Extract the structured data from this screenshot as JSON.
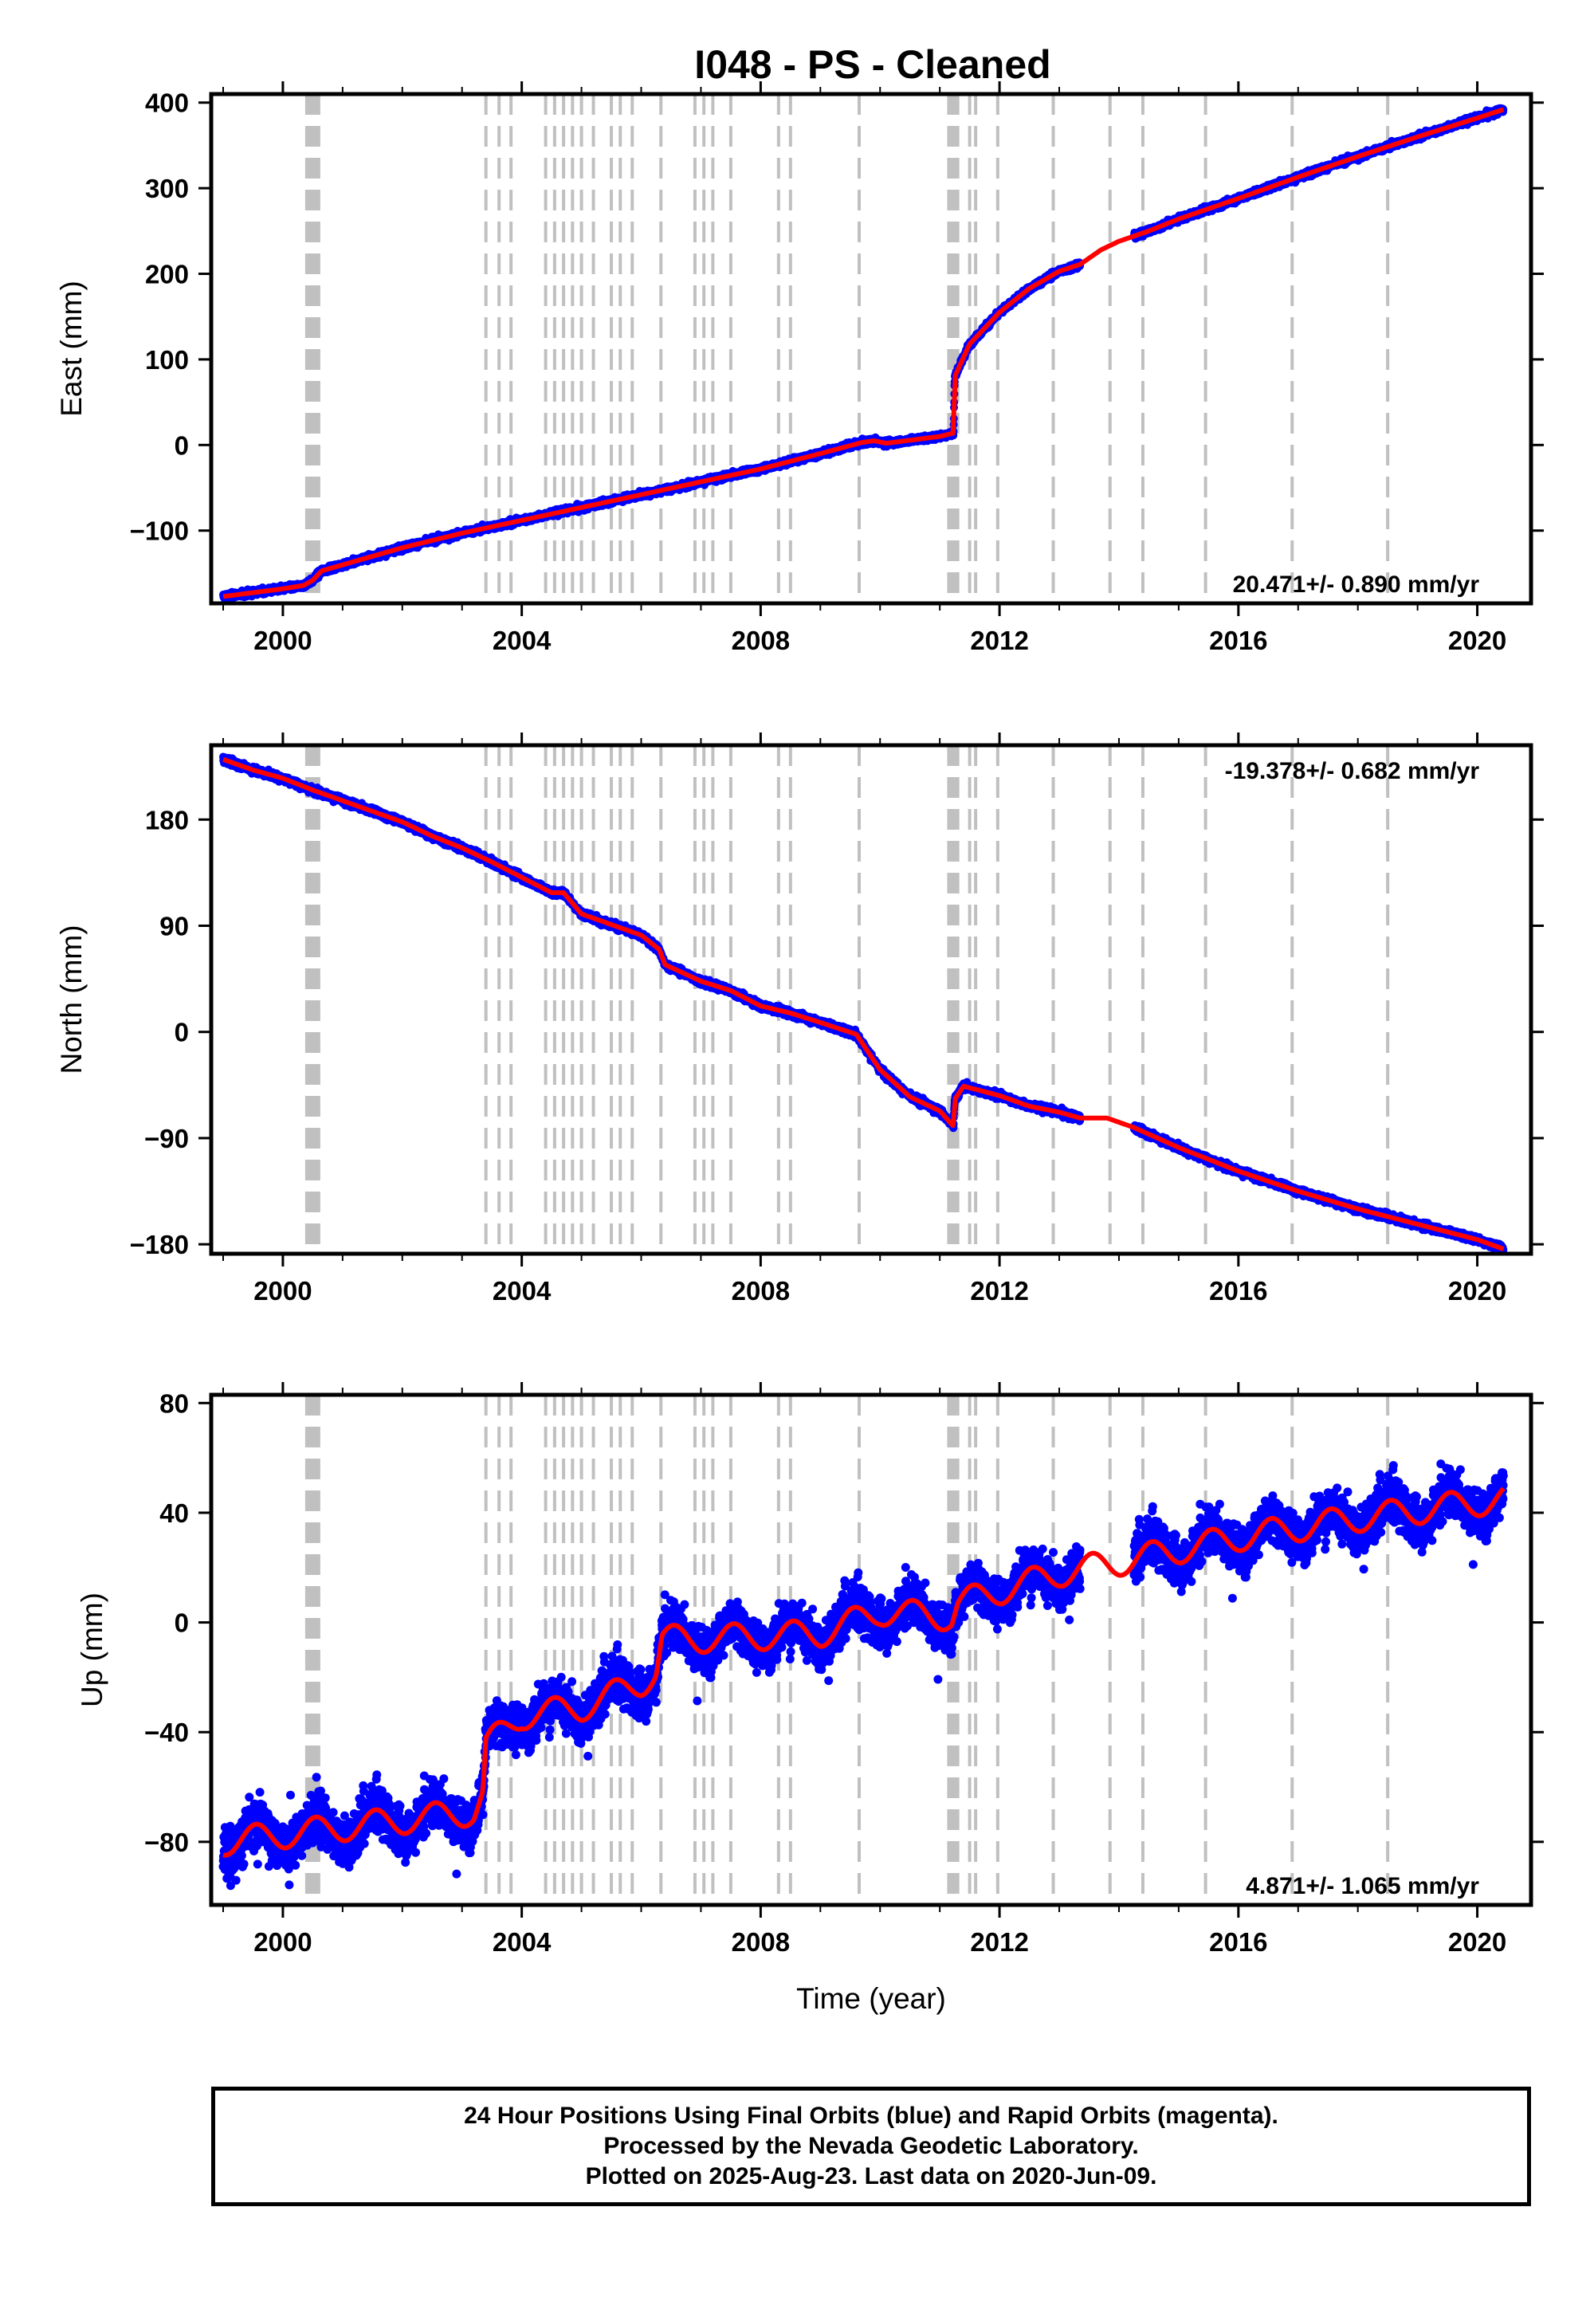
{
  "title": "I048  - PS - Cleaned",
  "xlabel": "Time (year)",
  "footer": {
    "line1": "24 Hour Positions Using Final Orbits (blue) and Rapid Orbits (magenta).",
    "line2": "Processed by the Nevada Geodetic Laboratory.",
    "line3": "Plotted on 2025-Aug-23. Last data on 2020-Jun-09."
  },
  "colors": {
    "points": "#0000ff",
    "model": "#ff0000",
    "steps": "#c0c0c0",
    "frame": "#000000"
  },
  "chart_data": [
    {
      "type": "scatter",
      "component": "East",
      "ylabel": "East (mm)",
      "rate_text": "20.471+/- 0.890 mm/yr",
      "rate_position": "bottom-right",
      "xlim": [
        1998.8,
        2020.9
      ],
      "ylim": [
        -185,
        410
      ],
      "xticks": [
        2000,
        2004,
        2008,
        2012,
        2016,
        2020
      ],
      "yticks": [
        -100,
        0,
        100,
        200,
        300,
        400
      ],
      "data_range": [
        1999.0,
        2020.44
      ],
      "gaps": [
        [
          2013.35,
          2014.25
        ]
      ],
      "noise": 3,
      "model": [
        [
          1999.0,
          -177
        ],
        [
          2000.0,
          -168
        ],
        [
          2000.35,
          -164
        ],
        [
          2000.5,
          -158
        ],
        [
          2000.65,
          -147
        ],
        [
          2001.0,
          -140
        ],
        [
          2002.0,
          -120
        ],
        [
          2003.0,
          -103
        ],
        [
          2004.0,
          -88
        ],
        [
          2005.0,
          -73
        ],
        [
          2006.0,
          -58
        ],
        [
          2007.0,
          -43
        ],
        [
          2008.0,
          -28
        ],
        [
          2009.0,
          -10
        ],
        [
          2009.7,
          3
        ],
        [
          2009.9,
          5
        ],
        [
          2010.1,
          2
        ],
        [
          2011.0,
          10
        ],
        [
          2011.23,
          14
        ],
        [
          2011.25,
          80
        ],
        [
          2011.5,
          118
        ],
        [
          2012.0,
          155
        ],
        [
          2012.5,
          183
        ],
        [
          2013.0,
          203
        ],
        [
          2013.35,
          211
        ],
        [
          2013.7,
          228
        ],
        [
          2014.0,
          238
        ],
        [
          2014.5,
          250
        ],
        [
          2015.0,
          264
        ],
        [
          2016.0,
          288
        ],
        [
          2017.0,
          313
        ],
        [
          2018.0,
          337
        ],
        [
          2019.0,
          360
        ],
        [
          2020.0,
          382
        ],
        [
          2020.44,
          392
        ]
      ]
    },
    {
      "type": "scatter",
      "component": "North",
      "ylabel": "North (mm)",
      "rate_text": "-19.378+/- 0.682 mm/yr",
      "rate_position": "top-right",
      "xlim": [
        1998.8,
        2020.9
      ],
      "ylim": [
        -188,
        243
      ],
      "xticks": [
        2000,
        2004,
        2008,
        2012,
        2016,
        2020
      ],
      "yticks": [
        -180,
        -90,
        0,
        90,
        180
      ],
      "data_range": [
        1999.0,
        2020.44
      ],
      "gaps": [
        [
          2013.35,
          2014.25
        ]
      ],
      "noise": 2.5,
      "model": [
        [
          1999.0,
          231
        ],
        [
          1999.5,
          222
        ],
        [
          2000.0,
          215
        ],
        [
          2000.5,
          205
        ],
        [
          2001.0,
          196
        ],
        [
          2002.0,
          178
        ],
        [
          2002.5,
          166
        ],
        [
          2003.0,
          156
        ],
        [
          2003.5,
          144
        ],
        [
          2004.0,
          131
        ],
        [
          2004.5,
          118
        ],
        [
          2004.7,
          118
        ],
        [
          2005.0,
          100
        ],
        [
          2006.0,
          82
        ],
        [
          2006.3,
          70
        ],
        [
          2006.4,
          57
        ],
        [
          2007.0,
          43
        ],
        [
          2007.5,
          35
        ],
        [
          2008.0,
          22
        ],
        [
          2008.5,
          16
        ],
        [
          2009.0,
          8
        ],
        [
          2009.6,
          -2
        ],
        [
          2010.0,
          -32
        ],
        [
          2010.5,
          -55
        ],
        [
          2011.0,
          -67
        ],
        [
          2011.23,
          -80
        ],
        [
          2011.25,
          -57
        ],
        [
          2011.4,
          -46
        ],
        [
          2012.0,
          -54
        ],
        [
          2012.5,
          -63
        ],
        [
          2013.0,
          -68
        ],
        [
          2013.35,
          -73
        ],
        [
          2013.8,
          -73
        ],
        [
          2014.25,
          -81
        ],
        [
          2015.0,
          -98
        ],
        [
          2016.0,
          -118
        ],
        [
          2017.0,
          -135
        ],
        [
          2018.0,
          -150
        ],
        [
          2019.0,
          -163
        ],
        [
          2020.0,
          -176
        ],
        [
          2020.44,
          -184
        ]
      ]
    },
    {
      "type": "scatter",
      "component": "Up",
      "ylabel": "Up (mm)",
      "rate_text": "4.871+/- 1.065 mm/yr",
      "rate_position": "bottom-right",
      "xlim": [
        1998.8,
        2020.9
      ],
      "ylim": [
        -103,
        83
      ],
      "xticks": [
        2000,
        2004,
        2008,
        2012,
        2016,
        2020
      ],
      "yticks": [
        -80,
        -40,
        0,
        40,
        80
      ],
      "data_range": [
        1999.0,
        2020.44
      ],
      "gaps": [
        [
          2013.35,
          2014.25
        ]
      ],
      "noise": 7,
      "seasonal_amplitude": 5,
      "model": [
        [
          1999.0,
          -80
        ],
        [
          2003.2,
          -69
        ],
        [
          2003.35,
          -63
        ],
        [
          2003.4,
          -45
        ],
        [
          2004.0,
          -34
        ],
        [
          2005.0,
          -31
        ],
        [
          2006.0,
          -22
        ],
        [
          2006.25,
          -18
        ],
        [
          2006.35,
          -6
        ],
        [
          2007.0,
          -6
        ],
        [
          2009.0,
          -4
        ],
        [
          2010.0,
          4
        ],
        [
          2011.2,
          2
        ],
        [
          2011.3,
          7
        ],
        [
          2013.0,
          18
        ],
        [
          2014.0,
          22
        ],
        [
          2016.0,
          31
        ],
        [
          2018.0,
          38
        ],
        [
          2020.44,
          45
        ]
      ]
    }
  ],
  "step_lines": [
    2000.4,
    2000.44,
    2000.48,
    2000.52,
    2000.56,
    2000.6,
    2003.4,
    2003.62,
    2003.82,
    2004.4,
    2004.55,
    2004.7,
    2004.85,
    2005.0,
    2005.2,
    2005.5,
    2005.65,
    2005.85,
    2006.33,
    2006.9,
    2007.05,
    2007.2,
    2007.5,
    2008.3,
    2008.5,
    2009.65,
    2011.15,
    2011.2,
    2011.25,
    2011.3,
    2011.5,
    2011.6,
    2011.97,
    2012.9,
    2013.85,
    2014.4,
    2015.45,
    2016.9,
    2018.5
  ]
}
